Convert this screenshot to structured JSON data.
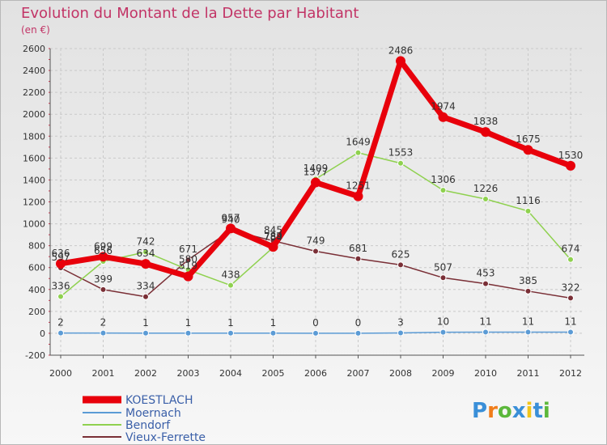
{
  "chart_data": {
    "type": "line",
    "title": "Evolution du Montant de la Dette par Habitant",
    "subtitle": "(en €)",
    "xlabel": "",
    "ylabel": "",
    "ylim": [
      -200,
      2600
    ],
    "y_ticks": [
      -200,
      0,
      200,
      400,
      600,
      800,
      1000,
      1200,
      1400,
      1600,
      1800,
      2000,
      2200,
      2400,
      2600
    ],
    "categories": [
      "2000",
      "2001",
      "2002",
      "2003",
      "2004",
      "2005",
      "2006",
      "2007",
      "2008",
      "2009",
      "2010",
      "2011",
      "2012"
    ],
    "grid": true,
    "legend_position": "bottom-left",
    "series": [
      {
        "name": "KOESTLACH",
        "color": "#e8000b",
        "values": [
          636,
          699,
          634,
          519,
          957,
          789,
          1377,
          1251,
          2486,
          1974,
          1838,
          1675,
          1530
        ]
      },
      {
        "name": "Moernach",
        "color": "#5b9bd5",
        "values": [
          2,
          2,
          1,
          1,
          1,
          1,
          0,
          0,
          3,
          10,
          11,
          11,
          11
        ]
      },
      {
        "name": "Bendorf",
        "color": "#8fd14f",
        "values": [
          336,
          656,
          742,
          580,
          438,
          784,
          1409,
          1649,
          1553,
          1306,
          1226,
          1116,
          674
        ]
      },
      {
        "name": "Vieux-Ferrette",
        "color": "#7a2f36",
        "values": [
          597,
          399,
          334,
          671,
          940,
          845,
          749,
          681,
          625,
          507,
          453,
          385,
          322
        ]
      }
    ]
  },
  "brand": {
    "letters": [
      "P",
      "r",
      "o",
      "x",
      "i",
      "t",
      "i"
    ],
    "colors": [
      "#3a8fd8",
      "#f07d1a",
      "#5cb83c",
      "#3a8fd8",
      "#f2c51a",
      "#3a8fd8",
      "#5cb83c"
    ]
  }
}
